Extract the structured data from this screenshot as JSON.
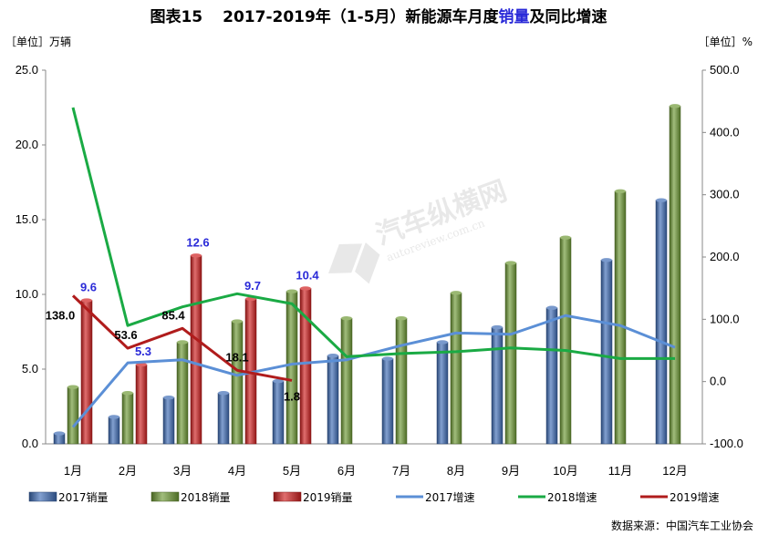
{
  "title": {
    "prefix": "图表15",
    "main_before": "2017-2019年（1-5月）新能源车月度",
    "main_highlight": "销量",
    "main_after": "及同比增速",
    "highlight_color": "#2a2ad8"
  },
  "left_unit": "［单位］万辆",
  "right_unit": "［单位］%",
  "source": "数据来源：中国汽车工业协会",
  "colors": {
    "bar2017": "#3f6db6",
    "bar2018": "#6e9a35",
    "bar2019": "#d02020",
    "line2017": "#5b8fd6",
    "line2018": "#1aaa44",
    "line2019": "#b01c1c",
    "label_blue": "#2a2ad8"
  },
  "chart_data": {
    "type": "bar",
    "categories": [
      "1月",
      "2月",
      "3月",
      "4月",
      "5月",
      "6月",
      "7月",
      "8月",
      "9月",
      "10月",
      "11月",
      "12月"
    ],
    "ylim_left": [
      0,
      25
    ],
    "yticks_left": [
      "0.0",
      "5.0",
      "10.0",
      "15.0",
      "20.0",
      "25.0"
    ],
    "ylim_right": [
      -100,
      500
    ],
    "yticks_right": [
      "-100.0",
      "0.0",
      "100.0",
      "200.0",
      "300.0",
      "400.0",
      "500.0"
    ],
    "bar_series": [
      {
        "name": "2017销量",
        "values": [
          0.7,
          1.8,
          3.1,
          3.4,
          4.2,
          5.9,
          5.7,
          6.8,
          7.8,
          9.1,
          12.3,
          16.3
        ]
      },
      {
        "name": "2018销量",
        "values": [
          3.8,
          3.4,
          6.8,
          8.2,
          10.2,
          8.4,
          8.4,
          10.1,
          12.1,
          13.8,
          16.9,
          22.6
        ]
      },
      {
        "name": "2019销量",
        "values": [
          9.6,
          5.3,
          12.6,
          9.7,
          10.4
        ]
      }
    ],
    "line_series": [
      {
        "name": "2017增速",
        "values": [
          -73,
          30,
          35,
          10,
          28,
          35,
          58,
          78,
          76,
          106,
          90,
          55
        ]
      },
      {
        "name": "2018增速",
        "values": [
          440,
          90,
          120,
          141,
          125,
          40,
          45,
          48,
          54,
          50,
          37,
          37
        ]
      },
      {
        "name": "2019增速",
        "values": [
          138.0,
          53.6,
          85.4,
          18.1,
          1.8
        ]
      }
    ],
    "labels_2019_sales": [
      "9.6",
      "5.3",
      "12.6",
      "9.7",
      "10.4"
    ],
    "labels_2019_growth": [
      "138.0",
      "53.6",
      "85.4",
      "18.1",
      "1.8"
    ],
    "grid": false,
    "legend_position": "bottom"
  }
}
